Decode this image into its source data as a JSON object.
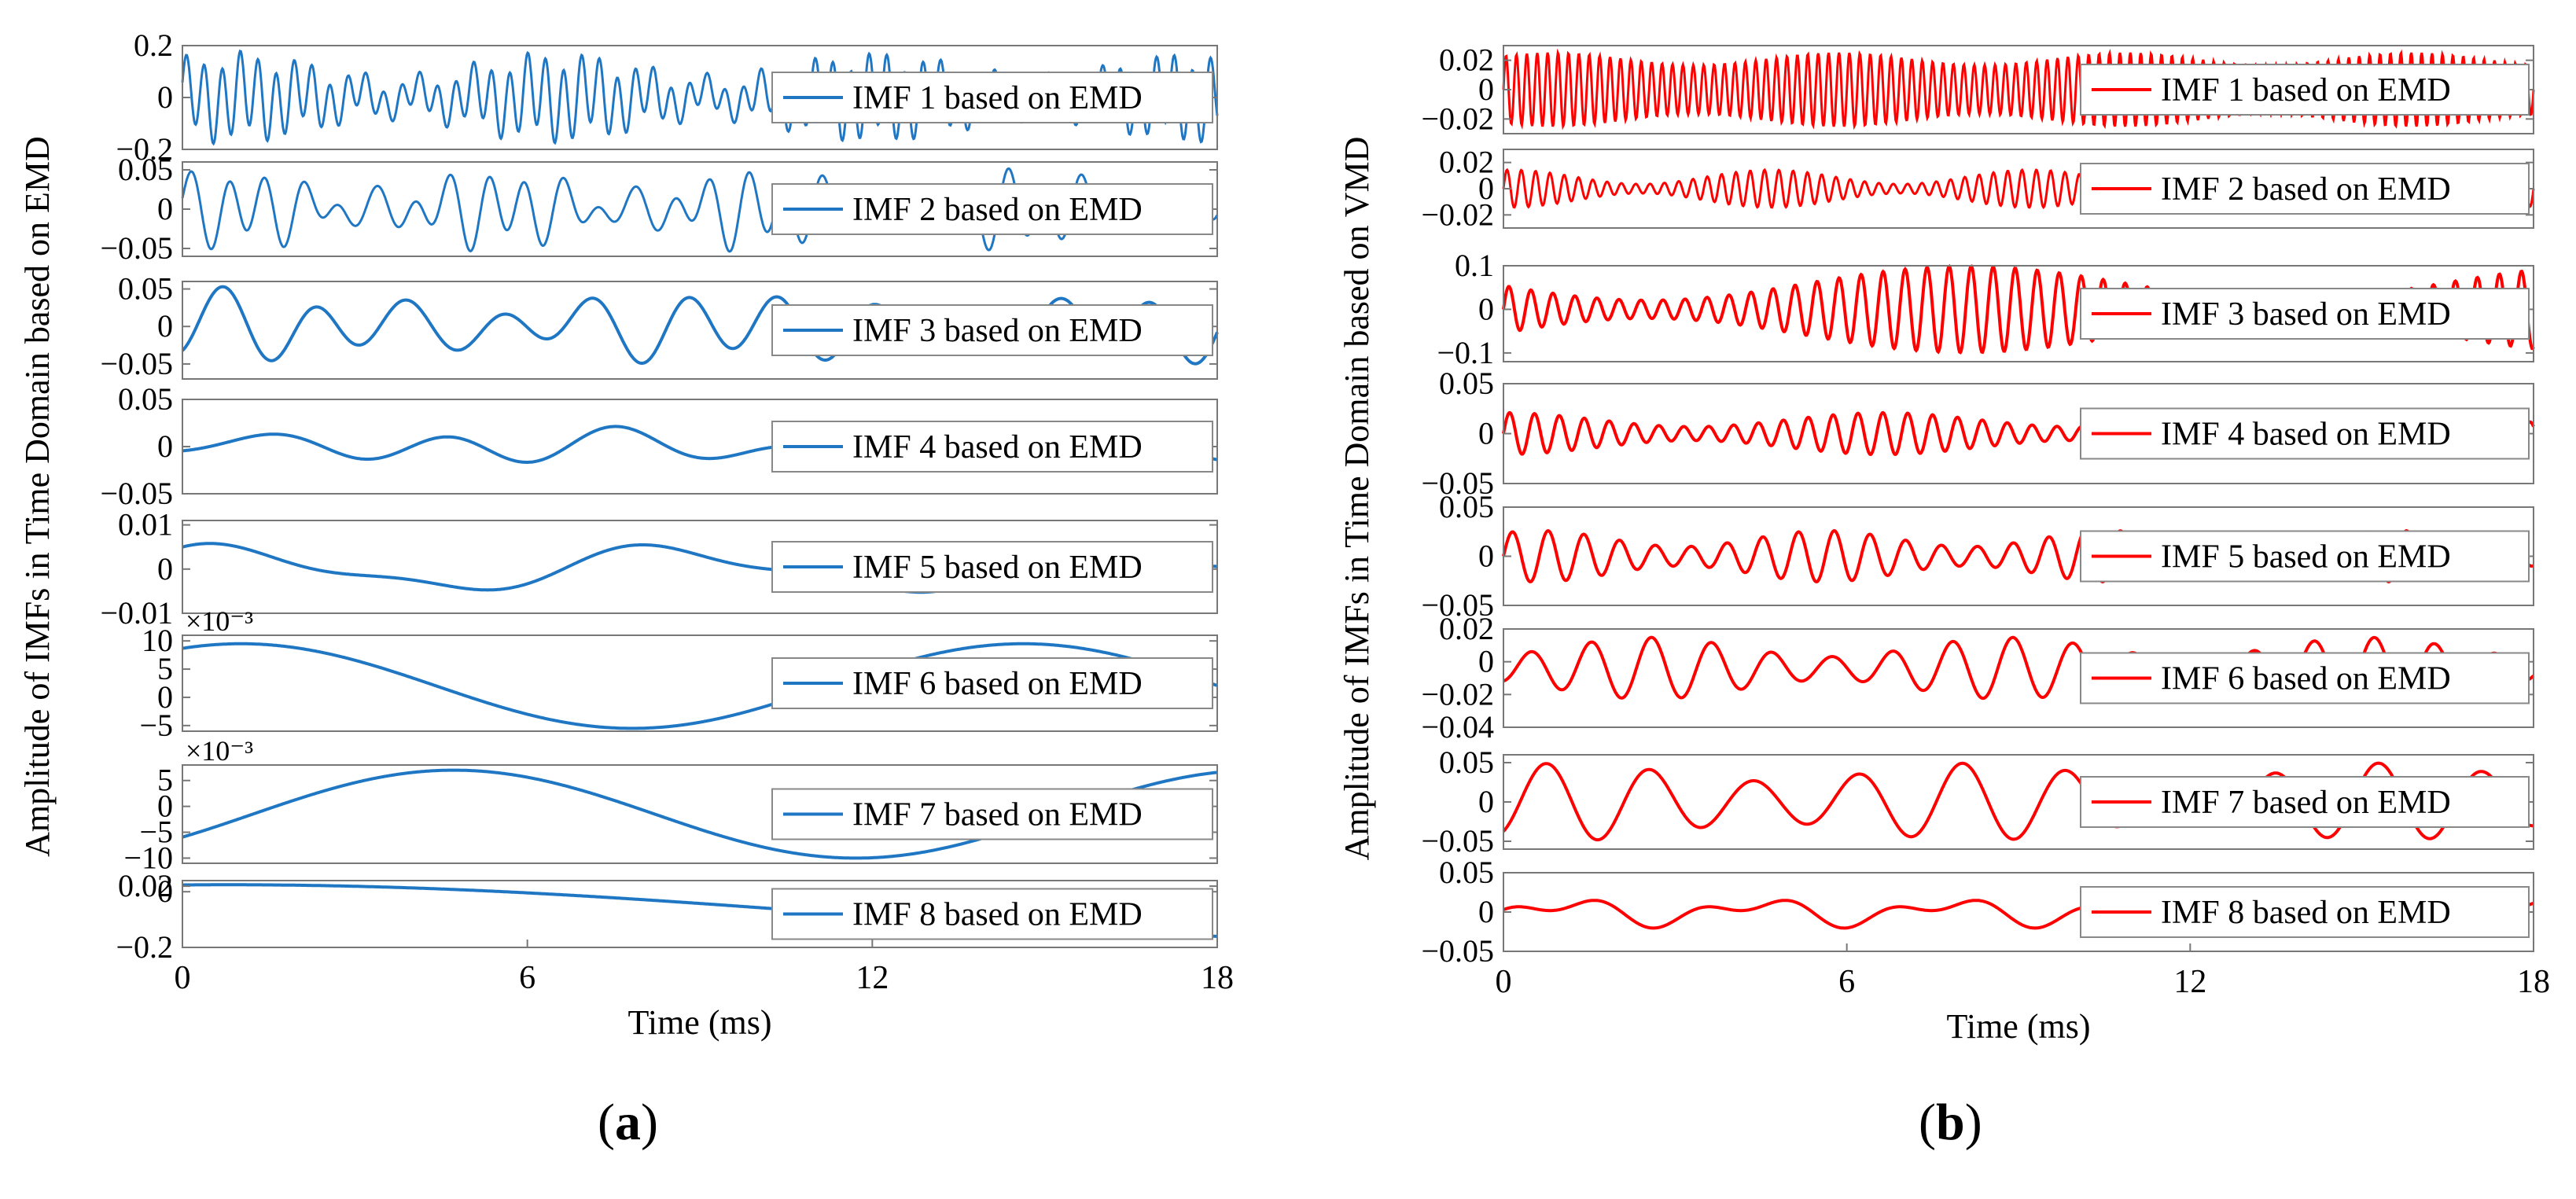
{
  "figure": {
    "caption_a": "a",
    "caption_b": "b"
  },
  "chart_data": [
    {
      "type": "line",
      "panel": "a",
      "color": "#1f77c4",
      "ylabel": "Amplitude of IMFs in Time Domain based on EMD",
      "xlabel": "Time (ms)",
      "xlim": [
        0,
        18
      ],
      "xticks": [
        "0",
        "6",
        "12",
        "18"
      ],
      "subplots": [
        {
          "legend": "IMF 1 based on EMD",
          "ylim": [
            -0.2,
            0.2
          ],
          "yticks": [
            {
              "v": 0.2,
              "t": "0.2"
            },
            {
              "v": 0,
              "t": "0"
            },
            {
              "v": -0.2,
              "t": "−0.2"
            }
          ],
          "exponent": "",
          "signal": {
            "components": [
              {
                "amp": 0.1,
                "freq": 3.2,
                "phase": 0.2
              },
              {
                "amp": 0.04,
                "freq": 1.0,
                "phase": 1.0
              }
            ],
            "envelope": {
              "amp": 0.45,
              "freq": 0.18,
              "phase": 0.5
            }
          }
        },
        {
          "legend": "IMF 2 based on EMD",
          "ylim": [
            -0.06,
            0.06
          ],
          "yticks": [
            {
              "v": 0.05,
              "t": "0.05"
            },
            {
              "v": 0,
              "t": "0"
            },
            {
              "v": -0.05,
              "t": "−0.05"
            }
          ],
          "exponent": "",
          "signal": {
            "components": [
              {
                "amp": 0.028,
                "freq": 1.55,
                "phase": 0.0
              },
              {
                "amp": 0.015,
                "freq": 0.9,
                "phase": 1.2
              }
            ],
            "envelope": {
              "amp": 0.5,
              "freq": 0.22,
              "phase": 0.3
            }
          }
        },
        {
          "legend": "IMF 3 based on EMD",
          "ylim": [
            -0.07,
            0.06
          ],
          "yticks": [
            {
              "v": 0.05,
              "t": "0.05"
            },
            {
              "v": 0,
              "t": "0"
            },
            {
              "v": -0.05,
              "t": "−0.05"
            }
          ],
          "exponent": "",
          "signal": {
            "components": [
              {
                "amp": 0.032,
                "freq": 0.62,
                "phase": -1.2
              },
              {
                "amp": 0.012,
                "freq": 0.33,
                "phase": 0.4
              }
            ],
            "envelope": {
              "amp": 0.3,
              "freq": 0.12,
              "phase": 0.9
            }
          }
        },
        {
          "legend": "IMF 4 based on EMD",
          "ylim": [
            -0.05,
            0.05
          ],
          "yticks": [
            {
              "v": 0.05,
              "t": "0.05"
            },
            {
              "v": 0,
              "t": "0"
            },
            {
              "v": -0.05,
              "t": "−0.05"
            }
          ],
          "exponent": "",
          "signal": {
            "components": [
              {
                "amp": 0.011,
                "freq": 0.33,
                "phase": -1.6
              },
              {
                "amp": 0.006,
                "freq": 0.17,
                "phase": 0.0
              }
            ],
            "envelope": {
              "amp": 0.6,
              "freq": 0.08,
              "phase": -1.4
            }
          }
        },
        {
          "legend": "IMF 5 based on EMD",
          "ylim": [
            -0.01,
            0.011
          ],
          "yticks": [
            {
              "v": 0.01,
              "t": "0.01"
            },
            {
              "v": 0,
              "t": "0"
            },
            {
              "v": -0.01,
              "t": "−0.01"
            }
          ],
          "exponent": "",
          "signal": {
            "components": [
              {
                "amp": 0.0045,
                "freq": 0.13,
                "phase": 0.95
              },
              {
                "amp": 0.0015,
                "freq": 0.27,
                "phase": 1.1
              }
            ],
            "envelope": {
              "amp": 0.0,
              "freq": 0.1,
              "phase": 0
            }
          }
        },
        {
          "legend": "IMF 6 based on EMD",
          "ylim": [
            -6,
            11
          ],
          "yticks": [
            {
              "v": 10,
              "t": "10"
            },
            {
              "v": 5,
              "t": "5"
            },
            {
              "v": 0,
              "t": "0"
            },
            {
              "v": -5,
              "t": "−5"
            }
          ],
          "exponent": "×10⁻³",
          "signal": {
            "components": [
              {
                "amp": 7.5,
                "freq": 0.0735,
                "phase": 1.1
              },
              {
                "amp": 2.0,
                "freq": 0.0,
                "phase": 1.5708
              }
            ],
            "envelope": {
              "amp": 0.0,
              "freq": 0.1,
              "phase": 0
            }
          }
        },
        {
          "legend": "IMF 7 based on EMD",
          "ylim": [
            -11,
            8
          ],
          "yticks": [
            {
              "v": 5,
              "t": "5"
            },
            {
              "v": 0,
              "t": "0"
            },
            {
              "v": -5,
              "t": "−5"
            },
            {
              "v": -10,
              "t": "−10"
            }
          ],
          "exponent": "×10⁻³",
          "signal": {
            "components": [
              {
                "amp": 8.5,
                "freq": 0.0715,
                "phase": -0.55
              },
              {
                "amp": -1.5,
                "freq": 0.0,
                "phase": 1.5708
              }
            ],
            "envelope": {
              "amp": 0.0,
              "freq": 0.1,
              "phase": 0
            }
          }
        },
        {
          "legend": "IMF 8 based on EMD",
          "ylim": [
            -0.2,
            0.04
          ],
          "yticks": [
            {
              "v": 0.02,
              "t": "0.02"
            },
            {
              "v": 0,
              "t": "0"
            },
            {
              "v": -0.2,
              "t": "−0.2"
            }
          ],
          "exponent": "",
          "signal": {
            "components": [
              {
                "amp": 0.1,
                "freq": 0.024,
                "phase": 1.45
              },
              {
                "amp": -0.075,
                "freq": 0.0,
                "phase": 1.5708
              }
            ],
            "envelope": {
              "amp": 0.0,
              "freq": 0.1,
              "phase": 0
            }
          }
        }
      ]
    },
    {
      "type": "line",
      "panel": "b",
      "color": "#ff0000",
      "ylabel": "Amplitude of IMFs in Time Domain based on VMD",
      "xlabel": "Time (ms)",
      "xlim": [
        0,
        18
      ],
      "xticks": [
        "0",
        "6",
        "12",
        "18"
      ],
      "subplots": [
        {
          "legend": "IMF 1 based on EMD",
          "ylim": [
            -0.03,
            0.03
          ],
          "yticks": [
            {
              "v": 0.02,
              "t": "0.02"
            },
            {
              "v": 0,
              "t": "0"
            },
            {
              "v": -0.02,
              "t": "−0.02"
            }
          ],
          "exponent": "",
          "signal": {
            "components": [
              {
                "amp": 0.021,
                "freq": 5.5,
                "phase": 0
              }
            ],
            "envelope": {
              "amp": 0.2,
              "freq": 0.2,
              "phase": 0.5
            }
          }
        },
        {
          "legend": "IMF 2 based on EMD",
          "ylim": [
            -0.03,
            0.03
          ],
          "yticks": [
            {
              "v": 0.02,
              "t": "0.02"
            },
            {
              "v": 0,
              "t": "0"
            },
            {
              "v": -0.02,
              "t": "−0.02"
            }
          ],
          "exponent": "",
          "signal": {
            "components": [
              {
                "amp": 0.009,
                "freq": 4.0,
                "phase": 0
              }
            ],
            "envelope": {
              "amp": 0.6,
              "freq": 0.22,
              "phase": 1.4
            }
          }
        },
        {
          "legend": "IMF 3 based on EMD",
          "ylim": [
            -0.12,
            0.1
          ],
          "yticks": [
            {
              "v": 0.1,
              "t": "0.1"
            },
            {
              "v": 0,
              "t": "0"
            },
            {
              "v": -0.1,
              "t": "−0.1"
            }
          ],
          "exponent": "",
          "signal": {
            "components": [
              {
                "amp": 0.06,
                "freq": 2.6,
                "phase": 0
              }
            ],
            "envelope": {
              "amp": 0.65,
              "freq": 0.09,
              "phase": -3.0
            }
          }
        },
        {
          "legend": "IMF 4 based on EMD",
          "ylim": [
            -0.05,
            0.05
          ],
          "yticks": [
            {
              "v": 0.05,
              "t": "0.05"
            },
            {
              "v": 0,
              "t": "0"
            },
            {
              "v": -0.05,
              "t": "−0.05"
            }
          ],
          "exponent": "",
          "signal": {
            "components": [
              {
                "amp": 0.014,
                "freq": 2.3,
                "phase": 0
              }
            ],
            "envelope": {
              "amp": 0.5,
              "freq": 0.15,
              "phase": 1.6
            }
          }
        },
        {
          "legend": "IMF 5 based on EMD",
          "ylim": [
            -0.05,
            0.05
          ],
          "yticks": [
            {
              "v": 0.05,
              "t": "0.05"
            },
            {
              "v": 0,
              "t": "0"
            },
            {
              "v": -0.05,
              "t": "−0.05"
            }
          ],
          "exponent": "",
          "signal": {
            "components": [
              {
                "amp": 0.018,
                "freq": 1.6,
                "phase": 0
              }
            ],
            "envelope": {
              "amp": 0.45,
              "freq": 0.2,
              "phase": 0.8
            }
          }
        },
        {
          "legend": "IMF 6 based on EMD",
          "ylim": [
            -0.04,
            0.02
          ],
          "yticks": [
            {
              "v": 0.02,
              "t": "0.02"
            },
            {
              "v": 0,
              "t": "0"
            },
            {
              "v": -0.02,
              "t": "−0.02"
            },
            {
              "v": -0.04,
              "t": "−0.04"
            }
          ],
          "exponent": "",
          "signal": {
            "components": [
              {
                "amp": 0.013,
                "freq": 0.95,
                "phase": -1.3
              },
              {
                "amp": -0.004,
                "freq": 0.0,
                "phase": 1.5708
              }
            ],
            "envelope": {
              "amp": 0.45,
              "freq": 0.16,
              "phase": -1.0
            }
          }
        },
        {
          "legend": "IMF 7 based on EMD",
          "ylim": [
            -0.06,
            0.06
          ],
          "yticks": [
            {
              "v": 0.05,
              "t": "0.05"
            },
            {
              "v": 0,
              "t": "0"
            },
            {
              "v": -0.05,
              "t": "−0.05"
            }
          ],
          "exponent": "",
          "signal": {
            "components": [
              {
                "amp": 0.038,
                "freq": 0.55,
                "phase": -1.0
              }
            ],
            "envelope": {
              "amp": 0.3,
              "freq": 0.14,
              "phase": 0.6
            }
          }
        },
        {
          "legend": "IMF 8 based on EMD",
          "ylim": [
            -0.05,
            0.05
          ],
          "yticks": [
            {
              "v": 0.05,
              "t": "0.05"
            },
            {
              "v": 0,
              "t": "0"
            },
            {
              "v": -0.05,
              "t": "−0.05"
            }
          ],
          "exponent": "",
          "signal": {
            "components": [
              {
                "amp": 0.012,
                "freq": 0.3,
                "phase": -0.5
              },
              {
                "amp": 0.009,
                "freq": 0.6,
                "phase": 1.3
              }
            ],
            "envelope": {
              "amp": 0.0,
              "freq": 0.1,
              "phase": 0
            }
          }
        }
      ]
    }
  ]
}
